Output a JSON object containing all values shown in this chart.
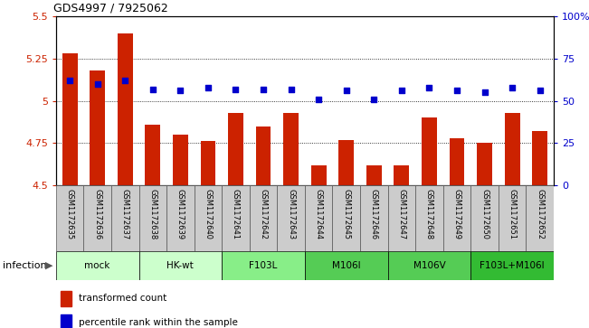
{
  "title": "GDS4997 / 7925062",
  "samples": [
    "GSM1172635",
    "GSM1172636",
    "GSM1172637",
    "GSM1172638",
    "GSM1172639",
    "GSM1172640",
    "GSM1172641",
    "GSM1172642",
    "GSM1172643",
    "GSM1172644",
    "GSM1172645",
    "GSM1172646",
    "GSM1172647",
    "GSM1172648",
    "GSM1172649",
    "GSM1172650",
    "GSM1172651",
    "GSM1172652"
  ],
  "red_values": [
    5.28,
    5.18,
    5.4,
    4.86,
    4.8,
    4.76,
    4.93,
    4.85,
    4.93,
    4.62,
    4.77,
    4.62,
    4.62,
    4.9,
    4.78,
    4.75,
    4.93,
    4.82
  ],
  "blue_values": [
    62,
    60,
    62,
    57,
    56,
    58,
    57,
    57,
    57,
    51,
    56,
    51,
    56,
    58,
    56,
    55,
    58,
    56
  ],
  "groups": [
    {
      "label": "mock",
      "start": 0,
      "end": 3,
      "color": "#ccffcc"
    },
    {
      "label": "HK-wt",
      "start": 3,
      "end": 6,
      "color": "#ccffcc"
    },
    {
      "label": "F103L",
      "start": 6,
      "end": 9,
      "color": "#88ee88"
    },
    {
      "label": "M106I",
      "start": 9,
      "end": 12,
      "color": "#55cc55"
    },
    {
      "label": "M106V",
      "start": 12,
      "end": 15,
      "color": "#55cc55"
    },
    {
      "label": "F103L+M106I",
      "start": 15,
      "end": 18,
      "color": "#33bb33"
    }
  ],
  "ylim_left": [
    4.5,
    5.5
  ],
  "ylim_right": [
    0,
    100
  ],
  "yticks_left": [
    4.5,
    4.75,
    5.0,
    5.25,
    5.5
  ],
  "yticks_right": [
    0,
    25,
    50,
    75,
    100
  ],
  "ytick_labels_left": [
    "4.5",
    "4.75",
    "5",
    "5.25",
    "5.5"
  ],
  "ytick_labels_right": [
    "0",
    "25",
    "50",
    "75",
    "100%"
  ],
  "bar_color": "#cc2200",
  "dot_color": "#0000cc",
  "grid_color": "#000000",
  "bar_width": 0.55,
  "infection_label": "infection",
  "sample_box_color": "#cccccc",
  "legend_items": [
    {
      "color": "#cc2200",
      "label": "transformed count"
    },
    {
      "color": "#0000cc",
      "label": "percentile rank within the sample"
    }
  ]
}
